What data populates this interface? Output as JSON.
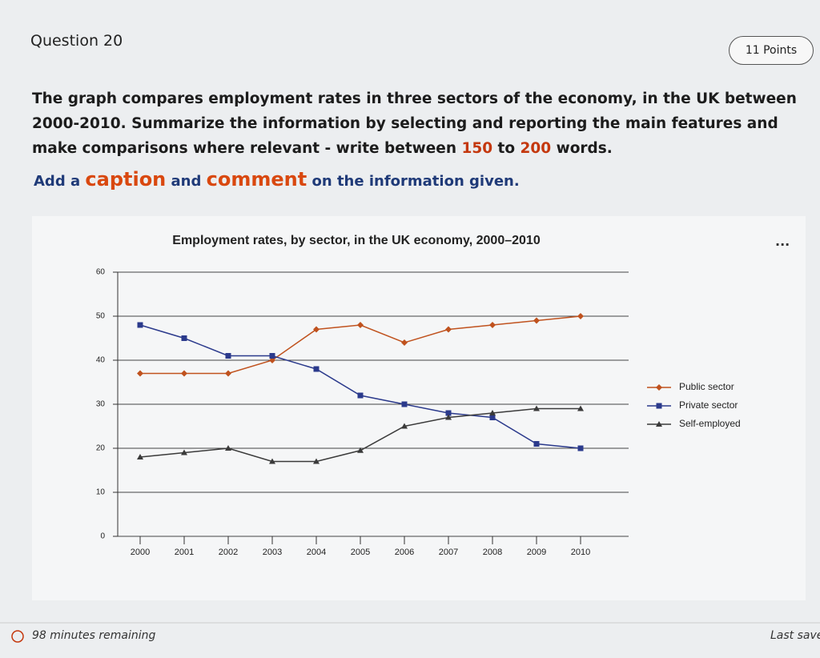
{
  "header": {
    "question": "Question 20",
    "points": "11 Points"
  },
  "prompt": {
    "parts": [
      "The graph compares employment rates in three sectors of the economy, in the UK between 2000-2010. Summarize the information by selecting and reporting the main features and make comparisons where relevant - write between ",
      "150",
      " to ",
      "200",
      " words."
    ]
  },
  "instruction": {
    "parts": [
      "Add a ",
      "caption",
      " and ",
      "comment",
      " on the information given."
    ]
  },
  "menu": "...",
  "footer": {
    "timer": "98 minutes remaining",
    "status": "Last save"
  },
  "chart_data": {
    "type": "line",
    "title": "Employment rates, by sector, in the UK economy, 2000–2010",
    "categories": [
      "2000",
      "2001",
      "2002",
      "2003",
      "2004",
      "2005",
      "2006",
      "2007",
      "2008",
      "2009",
      "2010"
    ],
    "series": [
      {
        "name": "Public sector",
        "color": "#c0521e",
        "marker": "diamond",
        "values": [
          37,
          37,
          37,
          40,
          47,
          48,
          44,
          47,
          48,
          49,
          50
        ]
      },
      {
        "name": "Private sector",
        "color": "#2b3a8c",
        "marker": "square",
        "values": [
          48,
          45,
          41,
          41,
          38,
          32,
          30,
          28,
          27,
          21,
          20
        ]
      },
      {
        "name": "Self-employed",
        "color": "#3a3a3a",
        "marker": "triangle",
        "values": [
          18,
          19,
          20,
          17,
          17,
          19.5,
          25,
          27,
          28,
          29,
          29
        ]
      }
    ],
    "ylim": [
      0,
      60
    ],
    "yticks": [
      0,
      10,
      20,
      30,
      40,
      50,
      60
    ],
    "grid": true,
    "legend": "right"
  }
}
